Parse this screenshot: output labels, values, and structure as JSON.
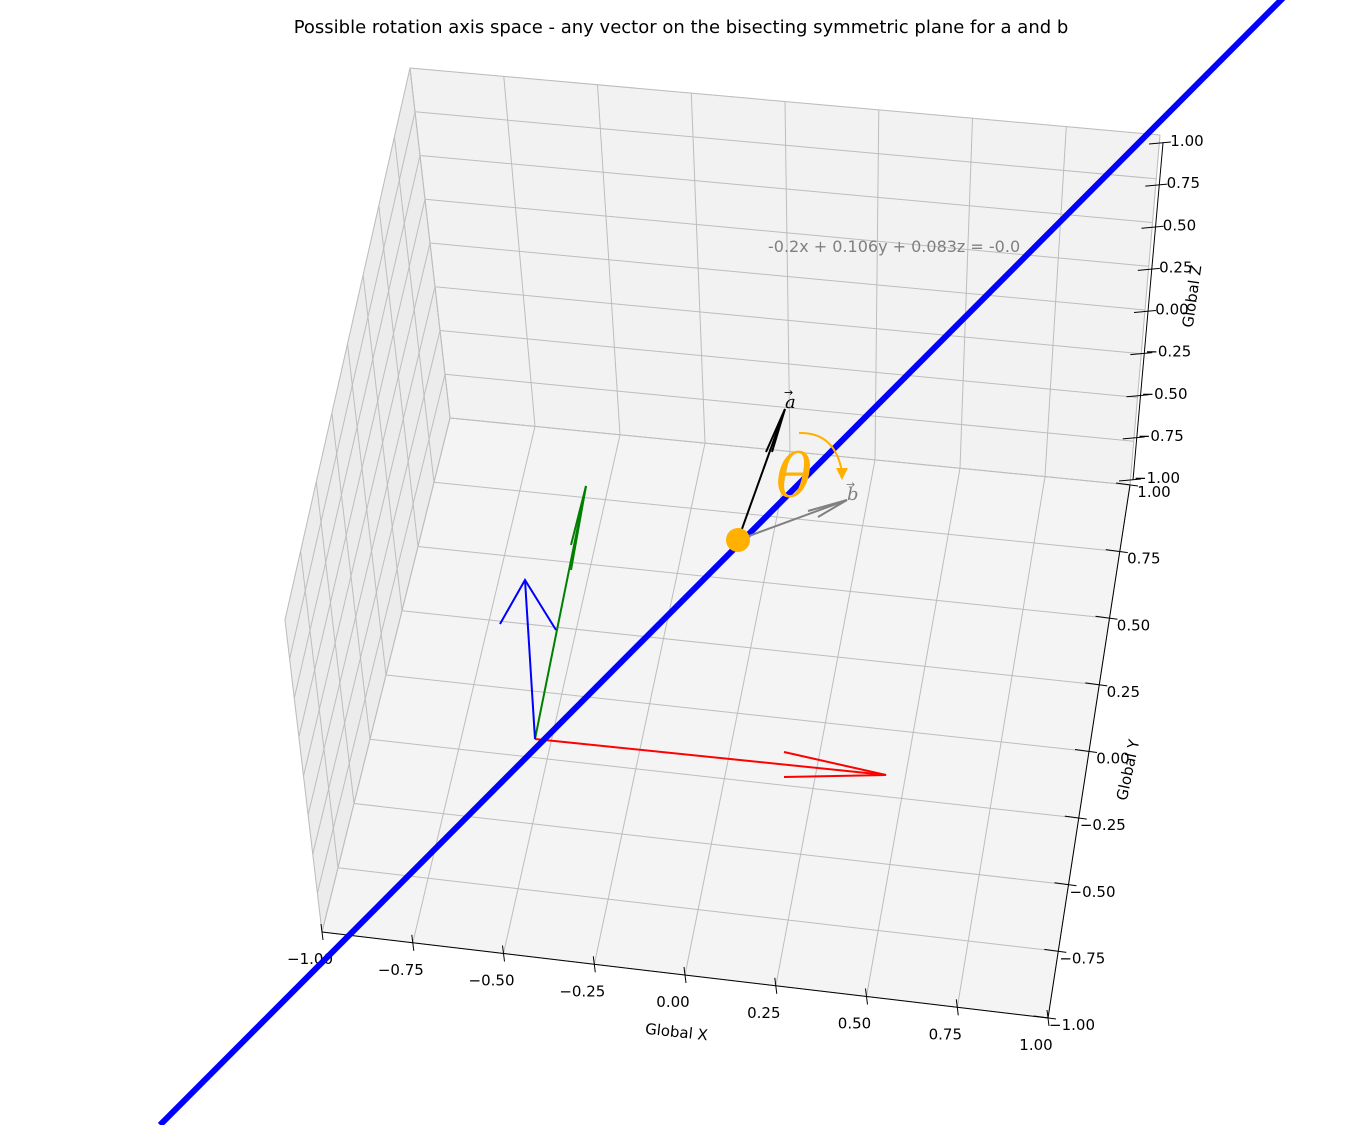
{
  "chart_data": {
    "type": "scatter",
    "projection": "3d",
    "title": "Possible rotation axis space - any vector on the bisecting symmetric plane for a and b",
    "xlabel": "Global X",
    "ylabel": "Global Y",
    "zlabel": "Global Z",
    "xlim": [
      -1,
      1
    ],
    "ylim": [
      -1,
      1
    ],
    "zlim": [
      -1,
      1
    ],
    "grid": true,
    "x_ticks": [
      "−1.00",
      "−0.75",
      "−0.50",
      "−0.25",
      "0.00",
      "0.25",
      "0.50",
      "0.75",
      "1.00"
    ],
    "y_ticks": [
      "−1.00",
      "−0.75",
      "−0.50",
      "−0.25",
      "0.00",
      "0.25",
      "0.50",
      "0.75",
      "1.00"
    ],
    "z_ticks": [
      "−1.00",
      "−0.75",
      "−0.50",
      "−0.25",
      "0.00",
      "0.25",
      "0.50",
      "0.75",
      "1.00"
    ],
    "annotations": {
      "plane_equation": "-0.2x + 0.106y + 0.083z = -0.0",
      "vector_a_label": "a",
      "vector_b_label": "b",
      "angle_label": "θ"
    },
    "colors": {
      "x_axis_arrow": "#ff0000",
      "y_axis_arrow": "#008000",
      "z_axis_arrow": "#0000ff",
      "axis_line": "#0000ff",
      "vector_a": "#000000",
      "vector_b": "#808080",
      "angle": "#ffb000",
      "plane_text": "#808080"
    }
  }
}
